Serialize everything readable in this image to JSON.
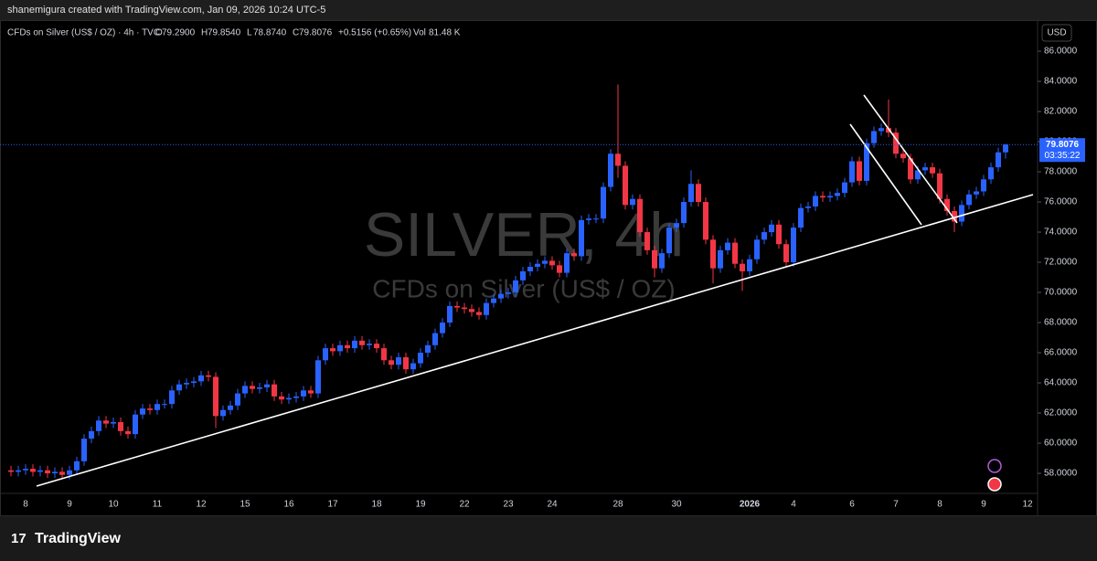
{
  "chart_data": {
    "type": "candlestick",
    "header": "shanemigura created with TradingView.com, Jan 09, 2026 10:24 UTC-5",
    "symbol": "CFDs on Silver (US$ / OZ) · 4h · TVC",
    "legend": [
      [
        "O",
        "79.2900"
      ],
      [
        "H",
        "79.8540"
      ],
      [
        "L",
        "78.8740"
      ],
      [
        "C",
        "79.8076"
      ]
    ],
    "change": "+0.5156 (+0.65%)",
    "volume_label": "Vol",
    "volume": "81.48 K",
    "watermark": "SILVER, 4h",
    "watermark_sub": "CFDs on Silver (US$ / OZ)",
    "currency": "USD",
    "last_price": 79.8076,
    "last_price_label": "79.8076",
    "countdown": "03:35:22",
    "footer": "TradingView",
    "up_color": "#2962ff",
    "down_color": "#f23645",
    "ylim": [
      56.67,
      87.7
    ],
    "yticks": [
      {
        "value": 58,
        "label": "58.0000"
      },
      {
        "value": 60,
        "label": "60.0000"
      },
      {
        "value": 62,
        "label": "62.0000"
      },
      {
        "value": 64,
        "label": "64.0000"
      },
      {
        "value": 66,
        "label": "66.0000"
      },
      {
        "value": 68,
        "label": "68.0000"
      },
      {
        "value": 70,
        "label": "70.0000"
      },
      {
        "value": 72,
        "label": "72.0000"
      },
      {
        "value": 74,
        "label": "74.0000"
      },
      {
        "value": 76,
        "label": "76.0000"
      },
      {
        "value": 78,
        "label": "78.0000"
      },
      {
        "value": 80,
        "label": "80.0000"
      },
      {
        "value": 82,
        "label": "82.0000"
      },
      {
        "value": 84,
        "label": "84.0000"
      },
      {
        "value": 86,
        "label": "86.0000"
      }
    ],
    "categories": [
      null,
      null,
      "8",
      null,
      null,
      null,
      null,
      null,
      "9",
      null,
      null,
      null,
      null,
      null,
      "10",
      null,
      null,
      null,
      null,
      null,
      "11",
      null,
      null,
      null,
      null,
      null,
      "12",
      null,
      null,
      null,
      null,
      null,
      "15",
      null,
      null,
      null,
      null,
      null,
      "16",
      null,
      null,
      null,
      null,
      null,
      "17",
      null,
      null,
      null,
      null,
      null,
      "18",
      null,
      null,
      null,
      null,
      null,
      "19",
      null,
      null,
      null,
      null,
      null,
      "22",
      null,
      null,
      null,
      null,
      null,
      "23",
      null,
      null,
      null,
      null,
      null,
      "24",
      null,
      null,
      null,
      null,
      null,
      null,
      null,
      null,
      "28",
      null,
      null,
      null,
      null,
      null,
      null,
      null,
      "30",
      null,
      null,
      null,
      null,
      null,
      null,
      null,
      null,
      null,
      "2026",
      null,
      null,
      null,
      null,
      null,
      "4",
      null,
      null,
      null,
      null,
      null,
      null,
      null,
      "6",
      null,
      null,
      null,
      null,
      null,
      "7",
      null,
      null,
      null,
      null,
      null,
      "8",
      null,
      null,
      null,
      null,
      null,
      "9",
      null,
      null,
      null,
      null,
      null,
      "12"
    ],
    "open": [
      58.2,
      58.1,
      58.2,
      58.3,
      58.1,
      58.2,
      58.0,
      58.1,
      57.9,
      58.2,
      58.8,
      60.3,
      60.8,
      61.5,
      61.3,
      61.4,
      60.8,
      60.6,
      61.9,
      62.3,
      62.2,
      62.6,
      62.6,
      63.5,
      63.9,
      64.0,
      64.1,
      64.5,
      64.4,
      61.8,
      62.2,
      62.5,
      63.3,
      63.8,
      63.6,
      63.7,
      63.9,
      63.1,
      62.9,
      63.0,
      63.1,
      63.5,
      63.3,
      65.5,
      66.3,
      66.1,
      66.5,
      66.3,
      66.8,
      66.5,
      66.6,
      66.3,
      65.5,
      65.2,
      65.7,
      64.9,
      65.3,
      66.0,
      66.5,
      67.3,
      68.0,
      69.1,
      69.0,
      68.9,
      68.7,
      68.5,
      69.3,
      69.6,
      69.9,
      70.0,
      70.8,
      71.4,
      71.7,
      71.9,
      72.1,
      71.8,
      71.3,
      72.6,
      72.4,
      74.8,
      74.9,
      74.9,
      77.0,
      79.2,
      78.4,
      75.8,
      76.2,
      74.0,
      72.8,
      71.6,
      72.6,
      74.3,
      74.6,
      76.0,
      77.2,
      76.0,
      73.5,
      71.6,
      72.8,
      73.3,
      71.9,
      71.4,
      72.2,
      73.5,
      74.0,
      74.5,
      73.2,
      72.0,
      74.3,
      75.6,
      75.7,
      76.4,
      76.3,
      76.4,
      76.6,
      77.3,
      78.7,
      77.4,
      79.9,
      80.7,
      80.9,
      80.6,
      79.2,
      78.9,
      77.5,
      78.1,
      78.3,
      77.9,
      76.2,
      75.4,
      74.7,
      75.8,
      76.5,
      76.7,
      77.5,
      78.3,
      79.29,
      null,
      null,
      null
    ],
    "high": [
      58.5,
      58.5,
      58.6,
      58.6,
      58.5,
      58.5,
      58.4,
      58.4,
      58.5,
      59.1,
      60.6,
      61.1,
      61.8,
      61.8,
      61.7,
      61.7,
      61.1,
      62.2,
      62.6,
      62.6,
      62.9,
      62.9,
      63.8,
      64.2,
      64.3,
      64.4,
      64.8,
      64.8,
      64.7,
      62.5,
      62.8,
      63.6,
      64.1,
      64.1,
      64.0,
      64.2,
      64.2,
      63.4,
      63.3,
      63.4,
      63.8,
      63.8,
      65.8,
      66.6,
      66.6,
      66.8,
      66.8,
      67.1,
      67.1,
      66.9,
      66.9,
      66.6,
      65.8,
      66.0,
      66.0,
      65.6,
      66.3,
      66.8,
      67.6,
      68.3,
      69.4,
      69.4,
      69.3,
      69.2,
      69.0,
      69.6,
      69.9,
      70.2,
      70.3,
      71.1,
      71.7,
      72.0,
      72.2,
      72.4,
      72.4,
      72.1,
      72.9,
      72.9,
      75.1,
      75.2,
      75.2,
      77.3,
      79.5,
      83.8,
      78.7,
      76.5,
      76.5,
      74.3,
      73.1,
      72.9,
      74.6,
      74.9,
      76.3,
      78.1,
      77.5,
      76.3,
      73.8,
      73.1,
      73.6,
      73.6,
      72.2,
      72.5,
      73.8,
      74.3,
      74.8,
      74.8,
      73.5,
      74.6,
      75.9,
      76.0,
      76.7,
      76.7,
      76.7,
      76.9,
      77.6,
      79.0,
      79.0,
      80.2,
      81.0,
      81.2,
      82.8,
      80.9,
      79.5,
      79.2,
      78.4,
      78.6,
      78.6,
      78.2,
      76.5,
      75.7,
      76.1,
      76.8,
      77.0,
      77.8,
      78.6,
      79.6,
      79.854,
      null,
      null,
      null
    ],
    "low": [
      57.8,
      57.8,
      57.9,
      57.8,
      57.8,
      57.7,
      57.7,
      57.6,
      57.6,
      57.9,
      58.5,
      60.0,
      60.5,
      61.0,
      61.0,
      60.5,
      60.3,
      60.3,
      61.6,
      61.9,
      61.9,
      62.3,
      62.3,
      63.2,
      63.6,
      63.7,
      63.8,
      64.1,
      61.0,
      61.5,
      61.9,
      62.2,
      63.0,
      63.3,
      63.3,
      63.4,
      62.8,
      62.6,
      62.6,
      62.7,
      62.8,
      63.0,
      63.0,
      65.2,
      65.8,
      65.8,
      66.0,
      66.0,
      66.2,
      66.2,
      66.0,
      65.2,
      64.9,
      64.9,
      64.6,
      64.6,
      65.0,
      65.7,
      66.2,
      67.0,
      67.7,
      68.7,
      68.6,
      68.4,
      68.2,
      68.2,
      69.0,
      69.3,
      69.6,
      69.7,
      70.5,
      71.1,
      71.4,
      71.6,
      71.5,
      71.0,
      71.0,
      72.1,
      72.1,
      74.5,
      74.6,
      74.6,
      76.7,
      77.6,
      75.5,
      75.5,
      73.7,
      72.5,
      71.0,
      71.3,
      72.3,
      74.0,
      74.3,
      75.7,
      75.7,
      73.2,
      70.6,
      71.3,
      72.5,
      71.6,
      70.1,
      71.1,
      71.9,
      73.2,
      73.7,
      72.9,
      71.7,
      71.7,
      74.0,
      75.3,
      75.4,
      76.0,
      76.0,
      76.1,
      76.3,
      77.0,
      77.1,
      77.1,
      79.6,
      80.4,
      80.3,
      78.9,
      78.6,
      77.2,
      77.2,
      77.8,
      77.6,
      75.9,
      75.1,
      74.0,
      74.4,
      75.5,
      76.2,
      76.4,
      77.2,
      78.0,
      78.874,
      null,
      null,
      null
    ],
    "close": [
      58.1,
      58.2,
      58.3,
      58.1,
      58.2,
      58.0,
      58.1,
      57.9,
      58.2,
      58.8,
      60.3,
      60.8,
      61.5,
      61.3,
      61.4,
      60.8,
      60.6,
      61.9,
      62.3,
      62.2,
      62.6,
      62.6,
      63.5,
      63.9,
      64.0,
      64.1,
      64.5,
      64.4,
      61.8,
      62.2,
      62.5,
      63.3,
      63.8,
      63.6,
      63.7,
      63.9,
      63.1,
      62.9,
      63.0,
      63.1,
      63.5,
      63.3,
      65.5,
      66.3,
      66.1,
      66.5,
      66.3,
      66.8,
      66.5,
      66.6,
      66.3,
      65.5,
      65.2,
      65.7,
      64.9,
      65.3,
      66.0,
      66.5,
      67.3,
      68.0,
      69.1,
      69.0,
      68.9,
      68.7,
      68.5,
      69.3,
      69.6,
      69.9,
      70.0,
      70.8,
      71.4,
      71.7,
      71.9,
      72.1,
      71.8,
      71.3,
      72.6,
      72.4,
      74.8,
      74.9,
      74.9,
      77.0,
      79.2,
      78.4,
      75.8,
      76.2,
      74.0,
      72.8,
      71.6,
      72.6,
      74.3,
      74.6,
      76.0,
      77.2,
      76.0,
      73.5,
      71.6,
      72.8,
      73.3,
      71.9,
      71.4,
      72.2,
      73.5,
      74.0,
      74.5,
      73.2,
      72.0,
      74.3,
      75.6,
      75.7,
      76.4,
      76.3,
      76.4,
      76.6,
      77.3,
      78.7,
      77.4,
      79.9,
      80.7,
      80.9,
      80.6,
      79.2,
      78.9,
      77.5,
      78.1,
      78.3,
      77.9,
      76.2,
      75.4,
      74.7,
      75.8,
      76.5,
      76.7,
      77.5,
      78.3,
      79.29,
      79.8076,
      null,
      null,
      null
    ]
  }
}
